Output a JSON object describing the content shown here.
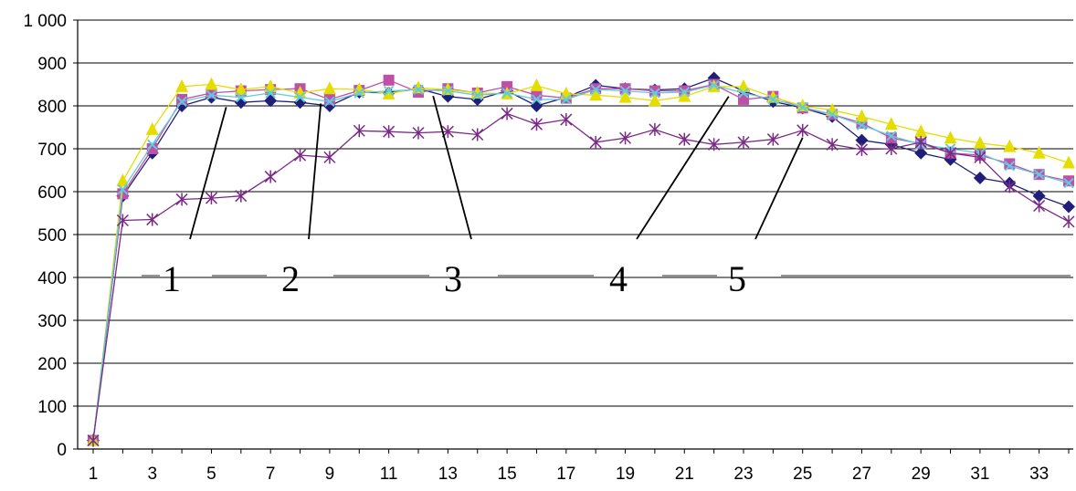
{
  "chart_data": {
    "type": "line",
    "title": "",
    "xlabel": "",
    "ylabel": "",
    "ylim": [
      0,
      1000
    ],
    "y_ticks": [
      "0",
      "100",
      "200",
      "300",
      "400",
      "500",
      "600",
      "700",
      "800",
      "900",
      "1 000"
    ],
    "x_ticks": [
      "1",
      "3",
      "5",
      "7",
      "9",
      "11",
      "13",
      "15",
      "17",
      "19",
      "21",
      "23",
      "25",
      "27",
      "29",
      "31",
      "33"
    ],
    "x": [
      1,
      2,
      3,
      4,
      5,
      6,
      7,
      8,
      9,
      10,
      11,
      12,
      13,
      14,
      15,
      16,
      17,
      18,
      19,
      20,
      21,
      22,
      23,
      24,
      25,
      26,
      27,
      28,
      29,
      30,
      31,
      32,
      33,
      34
    ],
    "grid": "horizontal",
    "legend": "none",
    "series": [
      {
        "color": "#1f1f7a",
        "marker": "diamond",
        "values": [
          20,
          590,
          690,
          800,
          820,
          808,
          812,
          808,
          800,
          832,
          830,
          840,
          822,
          815,
          835,
          800,
          820,
          848,
          840,
          837,
          840,
          865,
          835,
          810,
          795,
          775,
          720,
          710,
          690,
          675,
          632,
          620,
          590,
          565
        ]
      },
      {
        "color": "#c04fa8",
        "marker": "square",
        "values": [
          20,
          595,
          700,
          815,
          830,
          835,
          838,
          840,
          815,
          836,
          860,
          832,
          840,
          830,
          845,
          825,
          818,
          840,
          840,
          835,
          835,
          850,
          815,
          822,
          795,
          780,
          760,
          725,
          712,
          690,
          685,
          665,
          640,
          625
        ]
      },
      {
        "color": "#e6dd00",
        "marker": "triangle",
        "values": [
          20,
          625,
          745,
          845,
          850,
          838,
          845,
          830,
          840,
          838,
          828,
          842,
          838,
          830,
          828,
          847,
          828,
          825,
          820,
          812,
          822,
          845,
          845,
          820,
          800,
          790,
          775,
          757,
          740,
          725,
          713,
          705,
          690,
          667
        ]
      },
      {
        "color": "#5ecbe0",
        "marker": "x",
        "values": [
          20,
          605,
          710,
          810,
          825,
          820,
          830,
          820,
          810,
          830,
          835,
          838,
          835,
          825,
          830,
          815,
          815,
          838,
          835,
          830,
          832,
          848,
          830,
          815,
          797,
          780,
          755,
          730,
          710,
          700,
          690,
          660,
          640,
          620
        ]
      },
      {
        "color": "#7a2a86",
        "marker": "star",
        "values": [
          20,
          533,
          535,
          582,
          585,
          590,
          635,
          685,
          680,
          742,
          740,
          737,
          740,
          733,
          782,
          757,
          768,
          715,
          725,
          745,
          722,
          710,
          715,
          722,
          743,
          710,
          698,
          700,
          715,
          690,
          680,
          612,
          567,
          530
        ]
      }
    ],
    "annotations": [
      {
        "label": "1",
        "series": 1,
        "x": 5.5
      },
      {
        "label": "2",
        "series": 2,
        "x": 8.7
      },
      {
        "label": "3",
        "series": 3,
        "x": 12.5
      },
      {
        "label": "4",
        "series": 4,
        "x": 22.5
      },
      {
        "label": "5",
        "series": 5,
        "x": 25
      }
    ]
  }
}
